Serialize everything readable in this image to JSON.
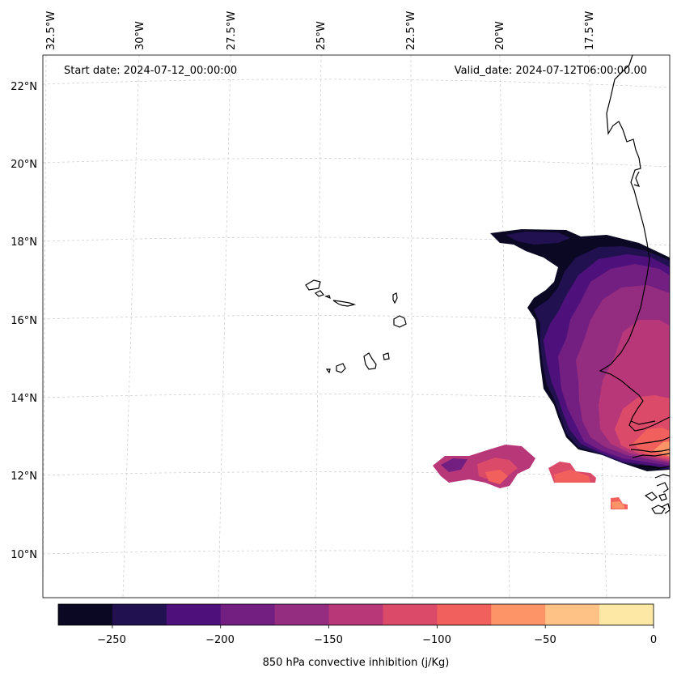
{
  "map": {
    "start_label": "Start date: 2024-07-12_00:00:00",
    "valid_label": "Valid_date: 2024-07-12T06:00:00.00",
    "lon_labels": [
      "32.5°W",
      "30°W",
      "27.5°W",
      "25°W",
      "22.5°W",
      "20°W",
      "17.5°W"
    ],
    "lat_labels": [
      "22°N",
      "20°N",
      "18°N",
      "16°N",
      "14°N",
      "12°N",
      "10°N"
    ]
  },
  "colorbar": {
    "title": "850 hPa convective inhibition (j/Kg)",
    "tick_labels": [
      "−250",
      "−200",
      "−150",
      "−100",
      "−50",
      "0"
    ],
    "bins": [
      -275,
      -250,
      -225,
      -200,
      -175,
      -150,
      -125,
      -100,
      -75,
      -50,
      -25,
      0
    ],
    "colors": [
      "#0a0822",
      "#221150",
      "#4e117b",
      "#721f81",
      "#942c80",
      "#b73779",
      "#dc4a6a",
      "#f1605d",
      "#fd9467",
      "#fec287",
      "#fde9a5"
    ]
  }
}
